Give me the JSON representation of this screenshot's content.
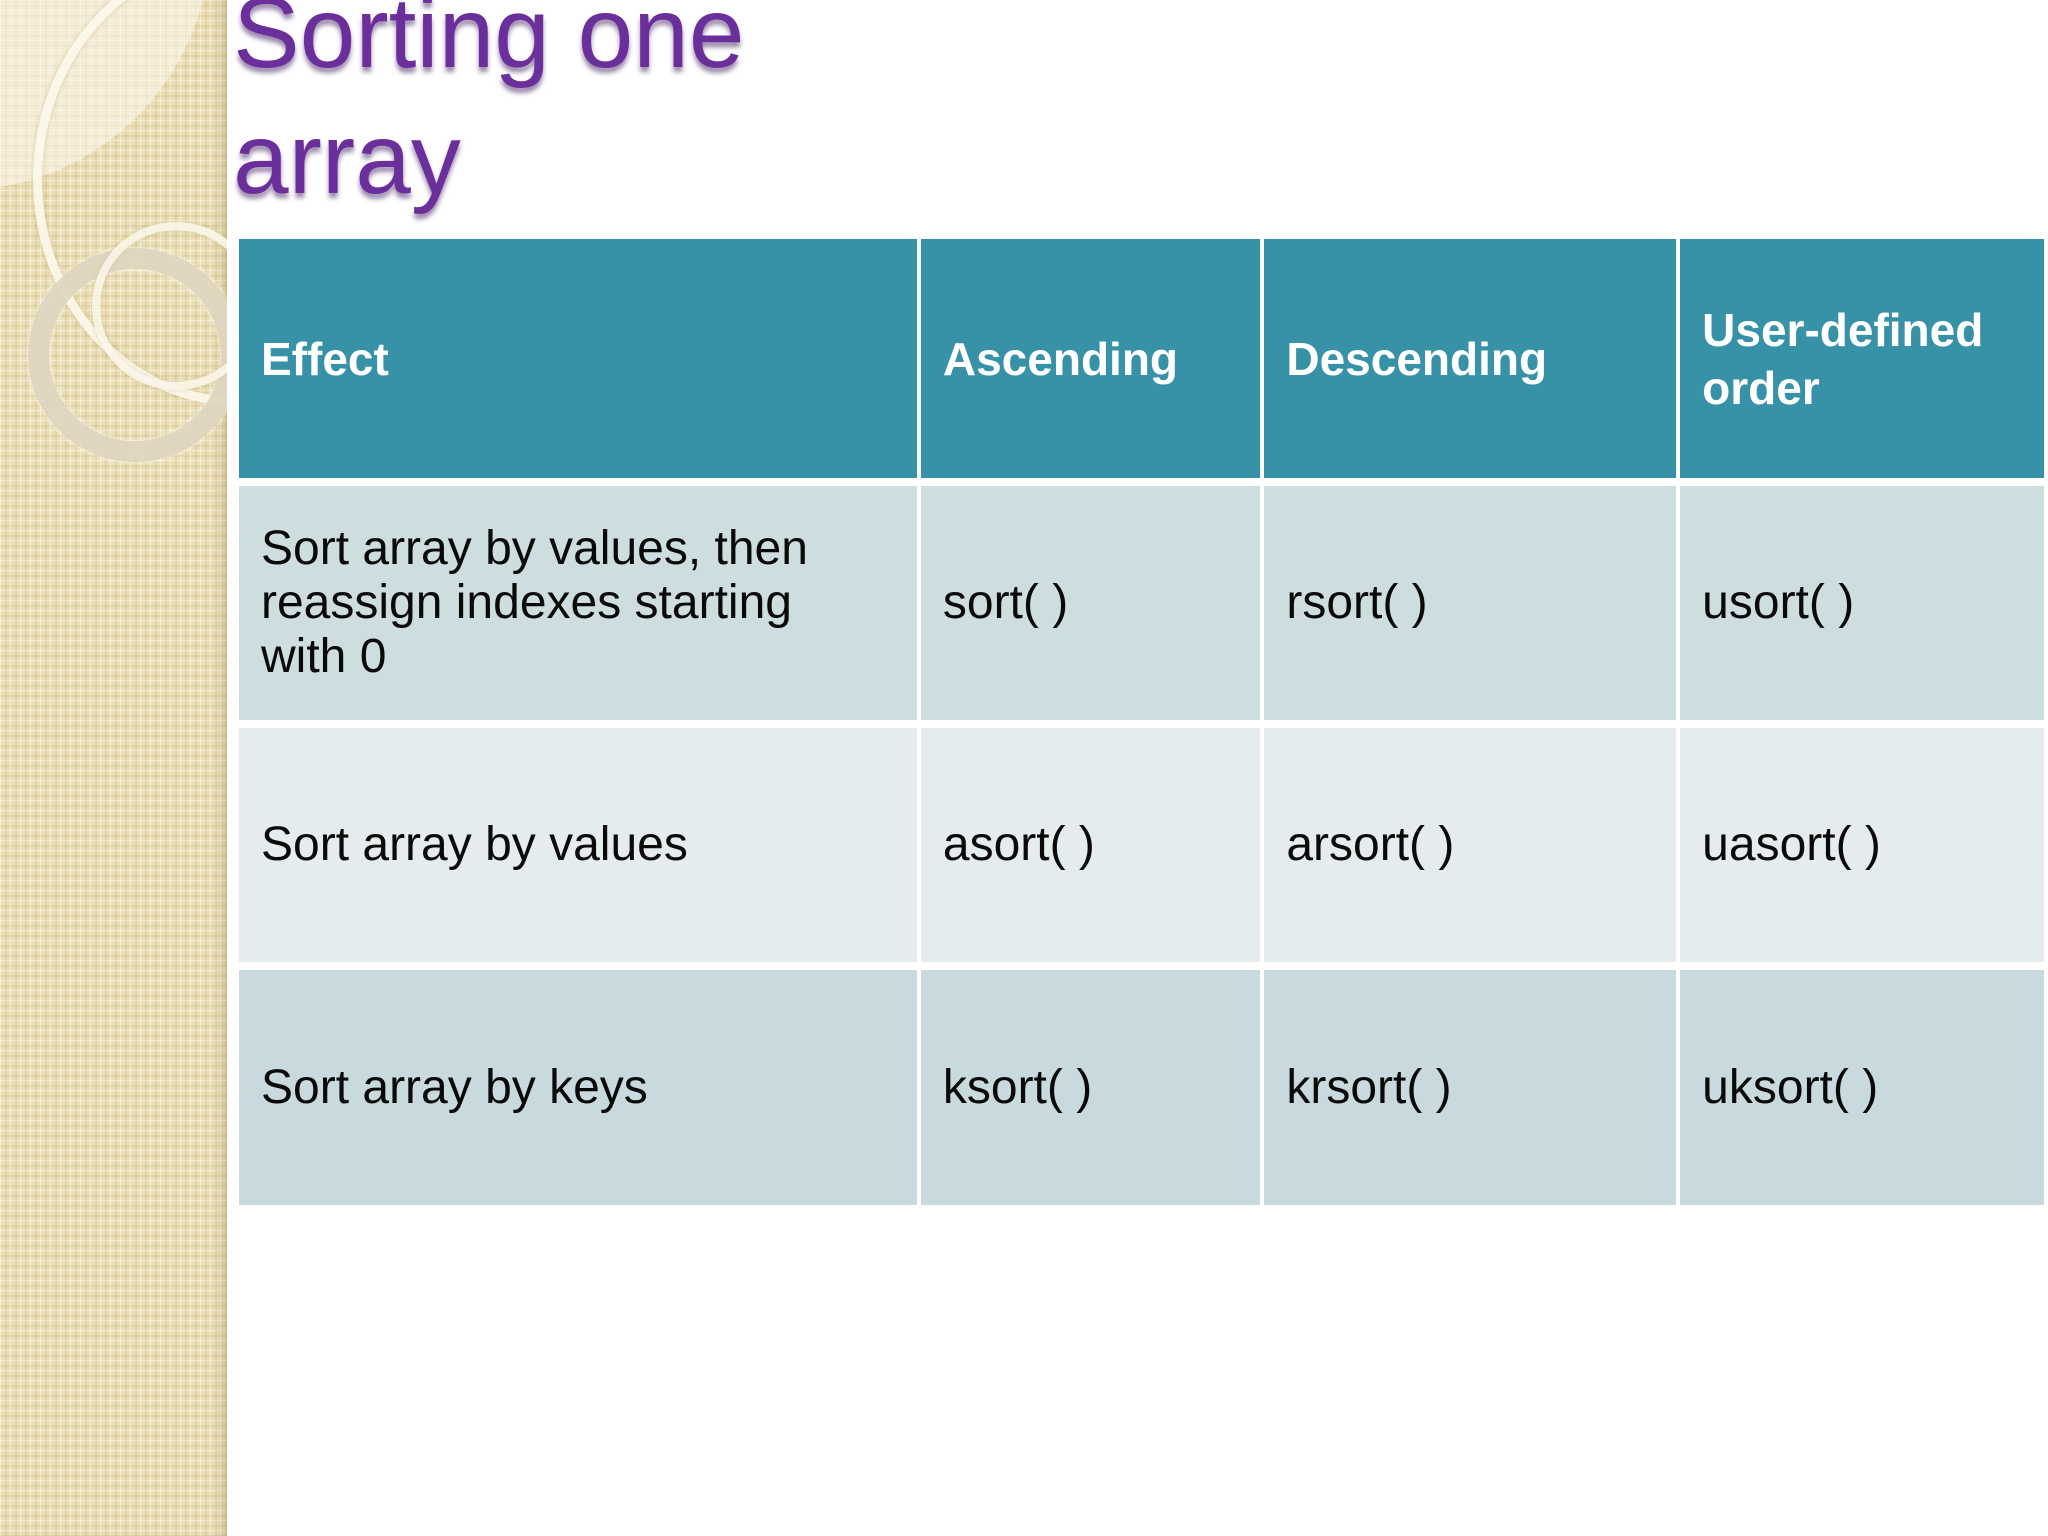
{
  "slide": {
    "title": {
      "line1": "Sorting one",
      "line2": "array"
    }
  },
  "table": {
    "headers": [
      "Effect",
      "Ascending",
      "Descending",
      "User-defined order"
    ],
    "rows": [
      {
        "effect": "Sort array by values, then reassign indexes starting with 0",
        "ascending": "sort( )",
        "descending": "rsort( )",
        "user_defined": "usort( )"
      },
      {
        "effect": "Sort array by values",
        "ascending": "asort( )",
        "descending": "arsort( )",
        "user_defined": "uasort( )"
      },
      {
        "effect": "Sort array by keys",
        "ascending": "ksort( )",
        "descending": "krsort( )",
        "user_defined": "uksort( )"
      }
    ]
  },
  "colors": {
    "header_background": "#3792a7",
    "header_text": "#ffffff",
    "row_band_dark": "#cddde0",
    "row_band_light": "#e5eced",
    "row_band_dark_alt": "#c9dade",
    "title_text": "#6b2f9c",
    "title_shadow": "#3a165a",
    "sidebar_background": "#ebdfb8",
    "body_text": "#000000",
    "slide_background": "#ffffff"
  }
}
